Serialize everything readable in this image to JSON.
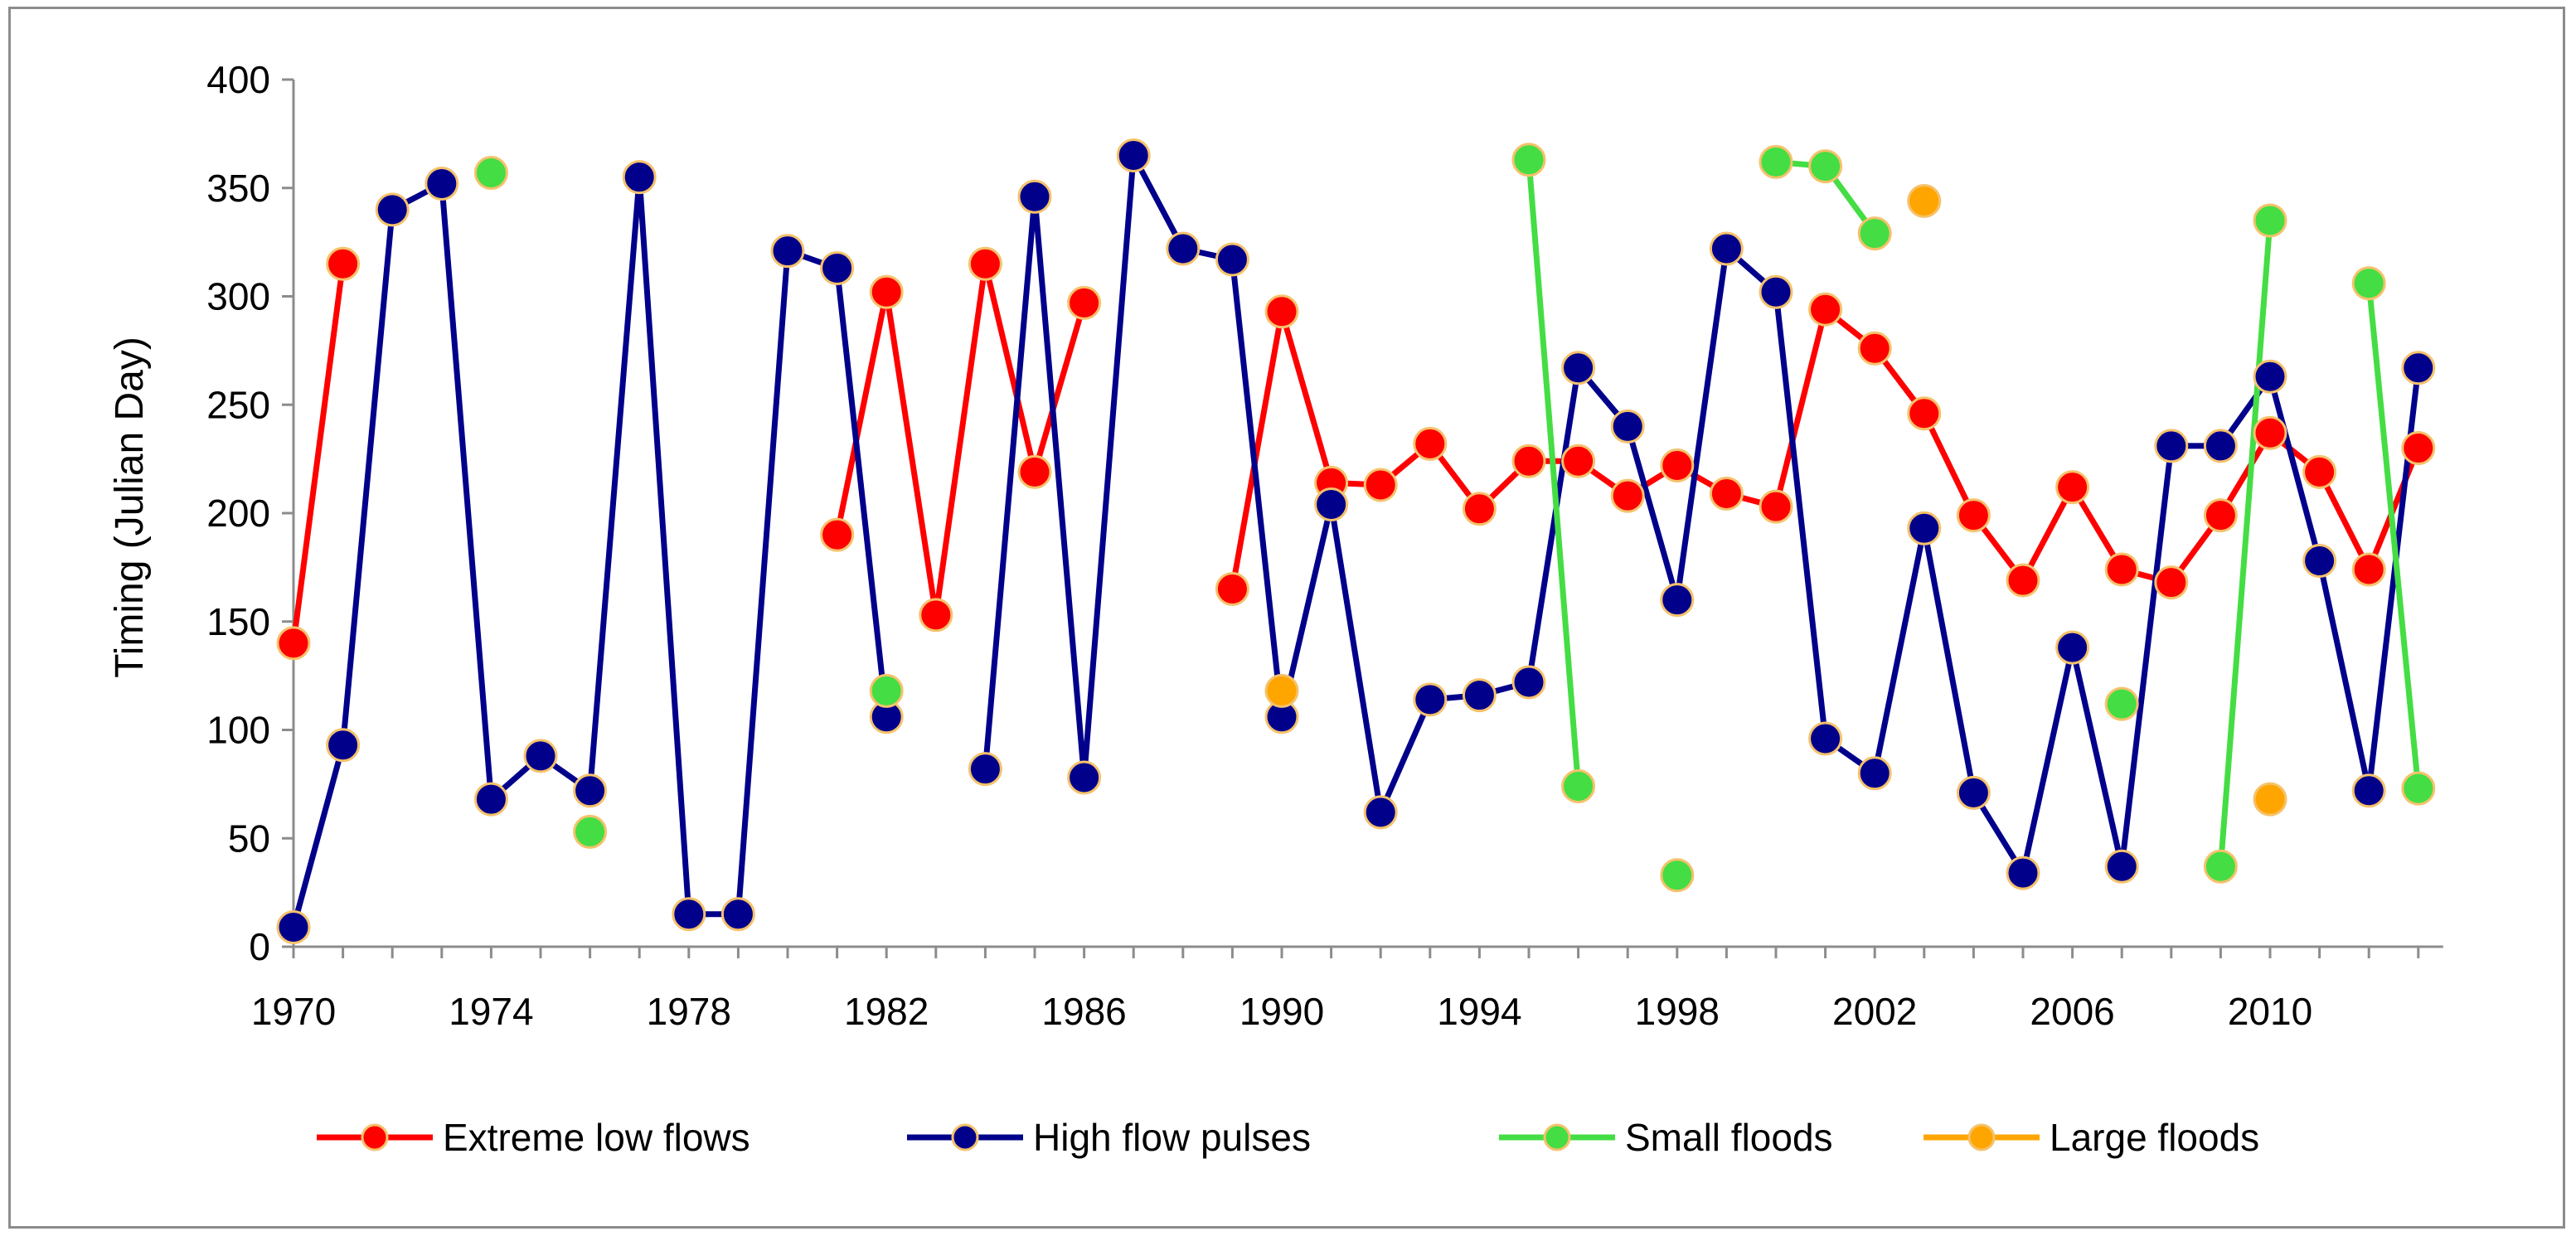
{
  "chart_data": {
    "type": "line",
    "title": "",
    "xlabel": "",
    "ylabel": "Timing (Julian Day)",
    "xlim": [
      1970,
      2013
    ],
    "ylim": [
      0,
      400
    ],
    "x_ticks": [
      1970,
      1974,
      1978,
      1982,
      1986,
      1990,
      1994,
      1998,
      2002,
      2006,
      2010
    ],
    "y_ticks": [
      0,
      50,
      100,
      150,
      200,
      250,
      300,
      350,
      400
    ],
    "grid": false,
    "legend_position": "bottom",
    "series": [
      {
        "name": "Extreme low flows",
        "color": "#ff0000",
        "segments": [
          [
            [
              1970,
              140
            ],
            [
              1971,
              315
            ]
          ],
          [
            [
              1981,
              190
            ],
            [
              1982,
              302
            ],
            [
              1983,
              153
            ],
            [
              1984,
              315
            ],
            [
              1985,
              219
            ],
            [
              1986,
              297
            ]
          ],
          [
            [
              1989,
              165
            ],
            [
              1990,
              293
            ],
            [
              1991,
              214
            ],
            [
              1992,
              213
            ],
            [
              1993,
              232
            ],
            [
              1994,
              202
            ],
            [
              1995,
              224
            ],
            [
              1996,
              224
            ],
            [
              1997,
              208
            ],
            [
              1998,
              222
            ],
            [
              1999,
              209
            ],
            [
              2000,
              203
            ],
            [
              2001,
              294
            ],
            [
              2002,
              276
            ],
            [
              2003,
              246
            ],
            [
              2004,
              199
            ],
            [
              2005,
              169
            ],
            [
              2006,
              212
            ],
            [
              2007,
              174
            ],
            [
              2008,
              168
            ],
            [
              2009,
              199
            ],
            [
              2010,
              237
            ],
            [
              2011,
              219
            ],
            [
              2012,
              174
            ],
            [
              2013,
              230
            ]
          ]
        ]
      },
      {
        "name": "High flow pulses",
        "color": "#00008b",
        "segments": [
          [
            [
              1970,
              9
            ],
            [
              1971,
              93
            ],
            [
              1972,
              340
            ],
            [
              1973,
              352
            ],
            [
              1974,
              68
            ],
            [
              1975,
              88
            ],
            [
              1976,
              72
            ],
            [
              1977,
              355
            ],
            [
              1978,
              15
            ],
            [
              1979,
              15
            ],
            [
              1980,
              321
            ],
            [
              1981,
              313
            ],
            [
              1982,
              106
            ],
            [
              1983,
              null
            ],
            [
              1984,
              82
            ],
            [
              1985,
              346
            ],
            [
              1986,
              78
            ],
            [
              1987,
              365
            ],
            [
              1988,
              322
            ],
            [
              1989,
              317
            ],
            [
              1990,
              106
            ],
            [
              1991,
              204
            ],
            [
              1992,
              62
            ],
            [
              1993,
              114
            ],
            [
              1994,
              116
            ],
            [
              1995,
              122
            ],
            [
              1996,
              267
            ],
            [
              1997,
              240
            ],
            [
              1998,
              160
            ],
            [
              1999,
              322
            ],
            [
              2000,
              302
            ],
            [
              2001,
              96
            ],
            [
              2002,
              80
            ],
            [
              2003,
              193
            ],
            [
              2004,
              71
            ],
            [
              2005,
              34
            ],
            [
              2006,
              138
            ],
            [
              2007,
              37
            ],
            [
              2008,
              231
            ],
            [
              2009,
              231
            ],
            [
              2010,
              263
            ],
            [
              2011,
              178
            ],
            [
              2012,
              72
            ],
            [
              2013,
              267
            ]
          ]
        ]
      },
      {
        "name": "Small floods",
        "color": "#44dd44",
        "segments": [
          [
            [
              1974,
              357
            ]
          ],
          [
            [
              1976,
              53
            ]
          ],
          [
            [
              1982,
              118
            ]
          ],
          [
            [
              1995,
              363
            ],
            [
              1996,
              74
            ]
          ],
          [
            [
              1998,
              33
            ]
          ],
          [
            [
              2000,
              362
            ],
            [
              2001,
              360
            ],
            [
              2002,
              329
            ]
          ],
          [
            [
              2007,
              112
            ]
          ],
          [
            [
              2009,
              37
            ],
            [
              2010,
              335
            ]
          ],
          [
            [
              2012,
              306
            ],
            [
              2013,
              73
            ]
          ]
        ]
      },
      {
        "name": "Large floods",
        "color": "#ffa500",
        "segments": [
          [
            [
              1990,
              118
            ]
          ],
          [
            [
              2003,
              344
            ]
          ],
          [
            [
              2010,
              68
            ]
          ]
        ]
      }
    ]
  }
}
